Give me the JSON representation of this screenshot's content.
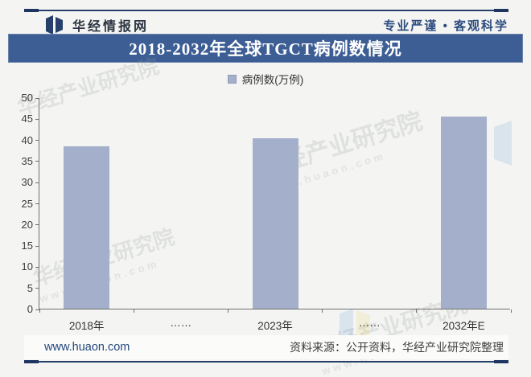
{
  "header": {
    "brand": "华经情报网",
    "slogan": "专业严谨 • 客观科学"
  },
  "title_bar": {
    "title": "2018-2032年全球TGCT病例数情况"
  },
  "legend": {
    "label": "病例数(万例)"
  },
  "chart_data": {
    "type": "bar",
    "title": "2018-2032年全球TGCT病例数情况",
    "categories": [
      "2018年",
      "……",
      "2023年",
      "……",
      "2032年E"
    ],
    "values": [
      38.5,
      null,
      40.3,
      null,
      45.4
    ],
    "series_name": "病例数(万例)",
    "xlabel": "",
    "ylabel": "",
    "ylim": [
      0,
      50
    ],
    "ytick_step": 5,
    "grid": false,
    "legend_position": "top",
    "bar_color": "#a4afcb"
  },
  "watermark": {
    "text": "华经产业研究院",
    "url": "www.huaon.com"
  },
  "footer": {
    "website": "www.huaon.com",
    "source": "资料来源：公开资料，华经产业研究院整理"
  },
  "colors": {
    "banner": "#3d5e94",
    "bar": "#a4afcb",
    "rule": "#27406b"
  }
}
